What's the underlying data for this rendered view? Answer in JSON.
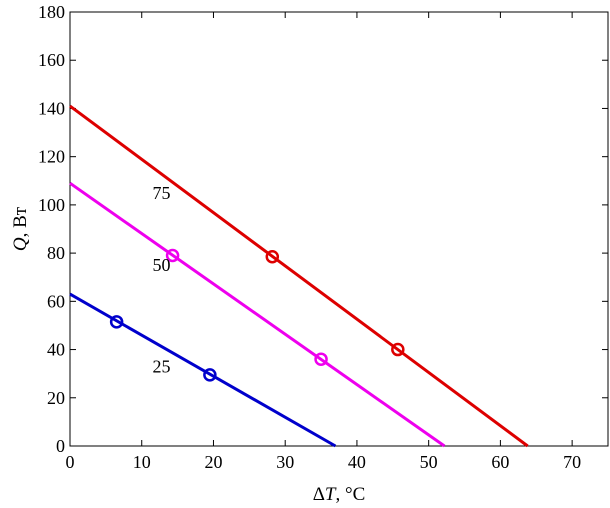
{
  "chart_data": {
    "type": "line",
    "title": "",
    "xlabel": "ΔT, °C",
    "ylabel": "Q, Вт",
    "xlim": [
      0,
      75
    ],
    "ylim": [
      0,
      180
    ],
    "xticks": [
      0,
      10,
      20,
      30,
      40,
      50,
      60,
      70
    ],
    "yticks": [
      0,
      20,
      40,
      60,
      80,
      100,
      120,
      140,
      160,
      180
    ],
    "grid": false,
    "series": [
      {
        "name": "25",
        "color": "#0000cc",
        "line": [
          [
            0,
            63
          ],
          [
            37,
            0
          ]
        ],
        "markers": [
          [
            6.5,
            51.5
          ],
          [
            19.5,
            29.5
          ]
        ],
        "label_position": [
          11.5,
          33
        ]
      },
      {
        "name": "50",
        "color": "#ee00ee",
        "line": [
          [
            0,
            109
          ],
          [
            52.2,
            0
          ]
        ],
        "markers": [
          [
            14.3,
            79
          ],
          [
            35,
            36
          ]
        ],
        "label_position": [
          11.5,
          75
        ]
      },
      {
        "name": "75",
        "color": "#dd0000",
        "line": [
          [
            0,
            141
          ],
          [
            63.8,
            0
          ]
        ],
        "markers": [
          [
            28.2,
            78.5
          ],
          [
            45.7,
            40
          ]
        ],
        "label_position": [
          11.5,
          105
        ]
      }
    ]
  }
}
